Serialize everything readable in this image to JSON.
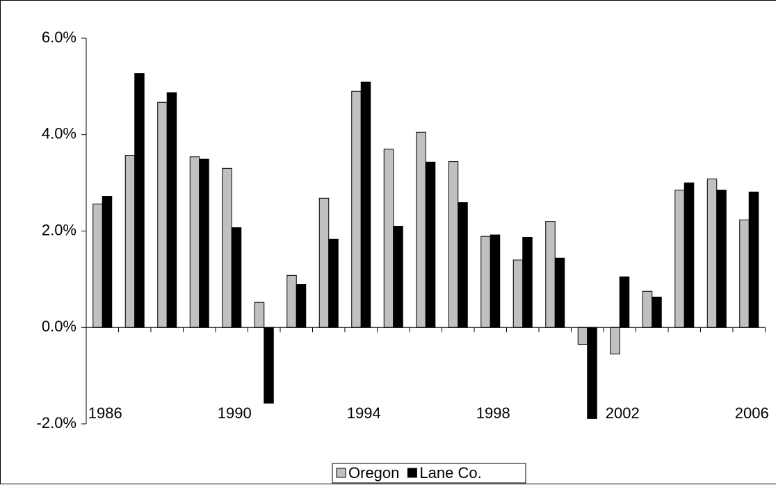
{
  "chart_data": {
    "type": "bar",
    "categories": [
      "1986",
      null,
      null,
      null,
      "1990",
      null,
      null,
      null,
      "1994",
      null,
      null,
      null,
      "1998",
      null,
      null,
      null,
      "2002",
      null,
      null,
      null,
      "2006"
    ],
    "series": [
      {
        "name": "Oregon",
        "color": "#c0c0c0",
        "values": [
          2.56,
          3.57,
          4.67,
          3.54,
          3.3,
          0.52,
          1.08,
          2.68,
          4.9,
          3.7,
          4.05,
          3.44,
          1.89,
          1.4,
          2.2,
          -0.35,
          -0.55,
          0.75,
          2.85,
          3.08,
          2.23
        ]
      },
      {
        "name": "Lane Co.",
        "color": "#000000",
        "values": [
          2.72,
          5.27,
          4.87,
          3.49,
          2.07,
          -1.57,
          0.89,
          1.83,
          5.09,
          2.1,
          3.43,
          2.59,
          1.92,
          1.87,
          1.44,
          -1.89,
          1.05,
          0.63,
          3.0,
          2.85,
          2.81
        ]
      }
    ],
    "ylim": [
      -2,
      6
    ],
    "yticks": [
      {
        "value": -2,
        "label": "-2.0%"
      },
      {
        "value": 0,
        "label": "0.0%"
      },
      {
        "value": 2,
        "label": "2.0%"
      },
      {
        "value": 4,
        "label": "4.0%"
      },
      {
        "value": 6,
        "label": "6.0%"
      }
    ],
    "legend": "bottom"
  }
}
